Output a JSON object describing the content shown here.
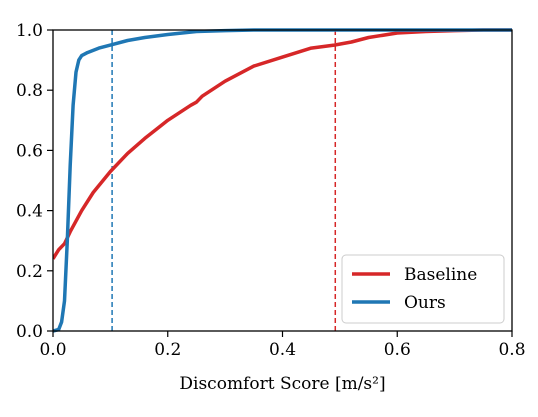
{
  "chart_data": {
    "type": "line",
    "title": "",
    "xlabel": "Discomfort Score [m/s²]",
    "ylabel": "",
    "xlim": [
      0.0,
      0.8
    ],
    "ylim": [
      0.0,
      1.0
    ],
    "x_ticks": [
      "0.0",
      "0.2",
      "0.4",
      "0.6",
      "0.8"
    ],
    "y_ticks": [
      "0.0",
      "0.2",
      "0.4",
      "0.6",
      "0.8",
      "1.0"
    ],
    "x_tick_values": [
      0.0,
      0.2,
      0.4,
      0.6,
      0.8
    ],
    "y_tick_values": [
      0.0,
      0.2,
      0.4,
      0.6,
      0.8,
      1.0
    ],
    "grid": false,
    "legend_position": "bottom-right",
    "series": [
      {
        "name": "Baseline",
        "color": "#d62728",
        "x": [
          0.0,
          0.01,
          0.02,
          0.03,
          0.05,
          0.07,
          0.1,
          0.13,
          0.16,
          0.2,
          0.24,
          0.25,
          0.26,
          0.3,
          0.35,
          0.4,
          0.45,
          0.49,
          0.52,
          0.55,
          0.6,
          0.65,
          0.7,
          0.75,
          0.8
        ],
        "y": [
          0.24,
          0.27,
          0.29,
          0.33,
          0.4,
          0.46,
          0.53,
          0.59,
          0.64,
          0.7,
          0.75,
          0.76,
          0.78,
          0.83,
          0.88,
          0.91,
          0.94,
          0.95,
          0.96,
          0.975,
          0.99,
          0.995,
          0.998,
          1.0,
          1.0
        ],
        "percentile_x": 0.492
      },
      {
        "name": "Ours",
        "color": "#1f77b4",
        "x": [
          0.0,
          0.01,
          0.015,
          0.02,
          0.025,
          0.03,
          0.035,
          0.04,
          0.045,
          0.05,
          0.055,
          0.06,
          0.08,
          0.1,
          0.13,
          0.16,
          0.2,
          0.25,
          0.3,
          0.35,
          0.4,
          0.5,
          0.6,
          0.7,
          0.8
        ],
        "y": [
          0.0,
          0.005,
          0.03,
          0.1,
          0.3,
          0.55,
          0.75,
          0.86,
          0.9,
          0.915,
          0.92,
          0.925,
          0.94,
          0.95,
          0.965,
          0.975,
          0.985,
          0.995,
          0.998,
          1.0,
          1.0,
          1.0,
          1.0,
          1.0,
          1.0
        ],
        "percentile_x": 0.103
      }
    ]
  }
}
